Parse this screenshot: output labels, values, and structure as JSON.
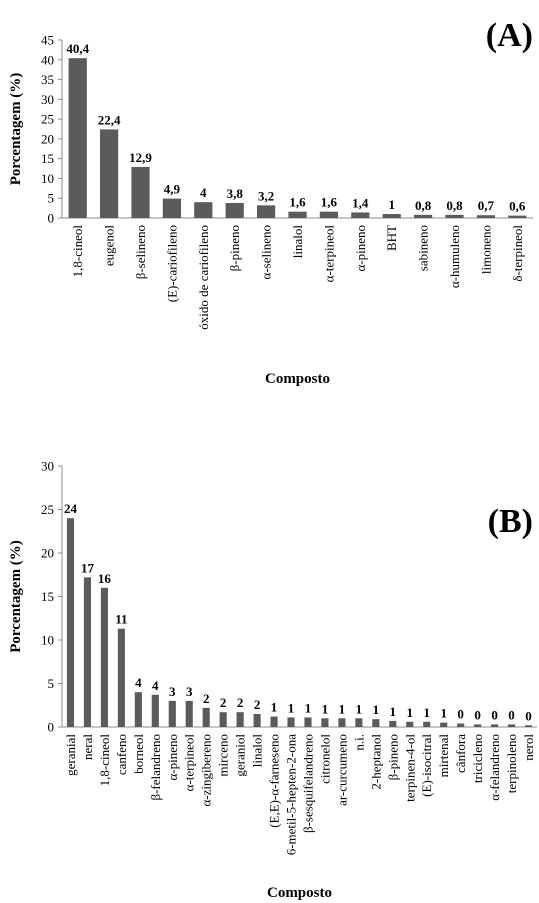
{
  "chart_data": [
    {
      "type": "bar",
      "panel_label": "(A)",
      "xlabel": "Composto",
      "ylabel": "Porcentagem (%)",
      "ylim": [
        0,
        45
      ],
      "yticks": [
        "0",
        "5",
        "10",
        "15",
        "20",
        "25",
        "30",
        "35",
        "40",
        "45"
      ],
      "grid": false,
      "categories": [
        "1,8-cineol",
        "eugenol",
        "β-selineno",
        "(E)-cariofileno",
        "óxido de cariofileno",
        "β-pineno",
        "α-selineno",
        "linalol",
        "α-terpineol",
        "α-pineno",
        "BHT",
        "sabineno",
        "α-humuleno",
        "limoneno",
        "δ-terpineol"
      ],
      "values": [
        40.4,
        22.4,
        12.9,
        4.9,
        4,
        3.8,
        3.2,
        1.6,
        1.6,
        1.4,
        1,
        0.8,
        0.8,
        0.7,
        0.6
      ],
      "data_labels": [
        "40,4",
        "22,4",
        "12,9",
        "4,9",
        "4",
        "3,8",
        "3,2",
        "1,6",
        "1,6",
        "1,4",
        "1",
        "0,8",
        "0,8",
        "0,7",
        "0,6"
      ],
      "bar_color": "#5b5b5b"
    },
    {
      "type": "bar",
      "panel_label": "(B)",
      "xlabel": "Composto",
      "ylabel": "Porcentagem (%)",
      "ylim": [
        0,
        30
      ],
      "yticks": [
        "0",
        "5",
        "10",
        "15",
        "20",
        "25",
        "30"
      ],
      "grid": false,
      "categories": [
        "geranial",
        "neral",
        "1,8-cineol",
        "canfeno",
        "borneol",
        "β-felandreno",
        "α-pineno",
        "α-terpineol",
        "α-zingibereno",
        "mirceno",
        "geraniol",
        "linalol",
        "(E,E)-α-farneseno",
        "6-metil-5-hepten-2-ona",
        "β-sesquifelandreno",
        "citronelol",
        "ar-curcumeno",
        "n.i.",
        "2-heptanol",
        "β-pineno",
        "terpinen-4-ol",
        "(E)-isocitral",
        "mirtenal",
        "cânfora",
        "tricicleno",
        "α-felandreno",
        "terpinoleno",
        "nerol"
      ],
      "values": [
        24,
        17.2,
        16,
        11.3,
        4,
        3.7,
        3,
        3,
        2.2,
        1.7,
        1.7,
        1.5,
        1.2,
        1.1,
        1.1,
        1,
        1,
        1,
        0.9,
        0.7,
        0.6,
        0.6,
        0.5,
        0.4,
        0.3,
        0.3,
        0.3,
        0.2
      ],
      "data_labels": [
        "24",
        "17",
        "16",
        "11",
        "4",
        "4",
        "3",
        "3",
        "2",
        "2",
        "2",
        "2",
        "1",
        "1",
        "1",
        "1",
        "1",
        "1",
        "1",
        "1",
        "1",
        "1",
        "1",
        "0",
        "0",
        "0",
        "0",
        "0"
      ],
      "bar_color": "#5b5b5b"
    }
  ]
}
